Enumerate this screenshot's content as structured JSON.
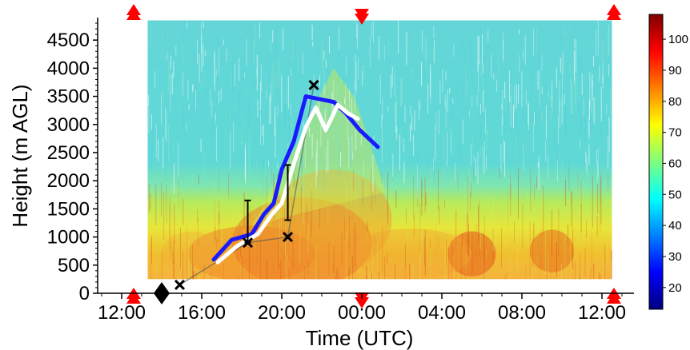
{
  "chart_data": {
    "type": "heatmap",
    "xlabel": "Time (UTC)",
    "ylabel": "Height (m AGL)",
    "x_ticks": [
      "12:00",
      "16:00",
      "20:00",
      "00:00",
      "04:00",
      "08:00",
      "12:00"
    ],
    "x_tick_hours": [
      0,
      4,
      8,
      12,
      16,
      20,
      24
    ],
    "x_range_hours": [
      -1.2,
      25.6
    ],
    "y_ticks": [
      0,
      500,
      1000,
      1500,
      2000,
      2500,
      3000,
      3500,
      4000,
      4500
    ],
    "ylim": [
      0,
      4900
    ],
    "colorbar": {
      "ticks": [
        20,
        30,
        40,
        50,
        60,
        70,
        80,
        90,
        100
      ],
      "range": [
        13,
        108
      ],
      "colors": [
        "#00007f",
        "#0000ff",
        "#007fff",
        "#00ffff",
        "#7fff7f",
        "#ffff00",
        "#ff7f00",
        "#ff0000",
        "#7f0000"
      ]
    },
    "data_extent": {
      "x_hours": [
        1.3,
        24.5
      ],
      "y": [
        250,
        4850
      ]
    },
    "series": [
      {
        "color": "#1a1aff",
        "x_hours": [
          4.6,
          5.5,
          6.5,
          7.1,
          7.6,
          8.0,
          8.6,
          9.2,
          9.9,
          10.6,
          11.2,
          11.9,
          12.8
        ],
        "y": [
          600,
          950,
          1050,
          1400,
          1600,
          2200,
          2700,
          3500,
          3450,
          3400,
          3200,
          2900,
          2600
        ]
      },
      {
        "color": "#ffffff",
        "x_hours": [
          4.8,
          5.8,
          6.8,
          7.5,
          8.0,
          8.6,
          9.2,
          9.7,
          10.2,
          10.8,
          11.3,
          11.8
        ],
        "y": [
          550,
          850,
          1050,
          1400,
          1600,
          2300,
          2950,
          3300,
          2900,
          3350,
          3200,
          3100
        ]
      }
    ],
    "x_markers": {
      "x_hours": [
        2.9,
        6.3,
        8.3,
        9.6
      ],
      "y": [
        150,
        900,
        1000,
        3700
      ]
    },
    "error_bars": [
      {
        "x_hours": 6.3,
        "y": [
          900,
          1650
        ]
      },
      {
        "x_hours": 8.3,
        "y": [
          1300,
          2280
        ]
      }
    ],
    "diamond": {
      "x_hours": 2.0,
      "y": 0
    },
    "up_triangles_hours": [
      0.6,
      24.6
    ],
    "down_triangles_hours": [
      12.0
    ]
  }
}
